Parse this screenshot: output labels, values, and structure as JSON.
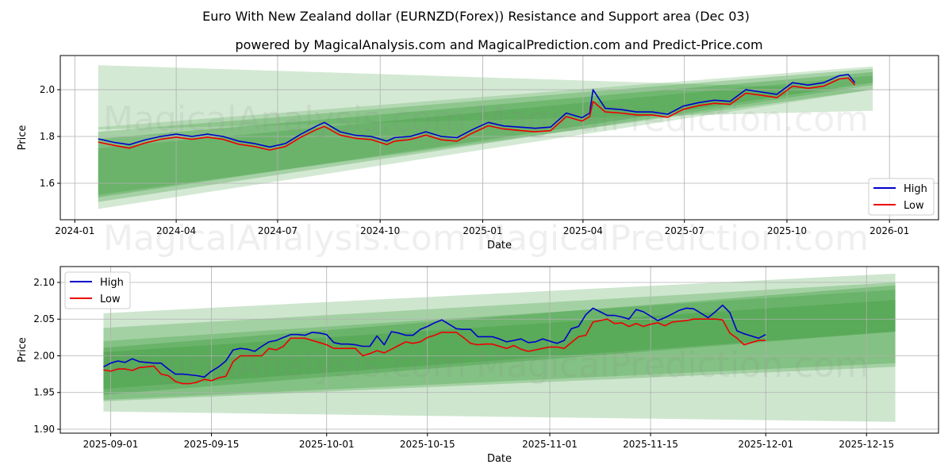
{
  "title": "Euro With New Zealand dollar (EURNZD(Forex)) Resistance and Support area (Dec 03)",
  "subtitle": "powered by MagicalAnalysis.com and MagicalPrediction.com and Predict-Price.com",
  "watermarks": [
    "MagicalAnalysis.com",
    "MagicalPrediction.com"
  ],
  "colors": {
    "high": "#0000cc",
    "low": "#ee0000",
    "band": "#3a9a3a"
  },
  "chart_data": [
    {
      "type": "line",
      "xlabel": "Date",
      "ylabel": "Price",
      "xlim": [
        "2023-12-19",
        "2026-02-14"
      ],
      "ylim": [
        1.444,
        2.146
      ],
      "grid": true,
      "legend": {
        "placement": "bottom-right",
        "entries": [
          "High",
          "Low"
        ]
      },
      "xticks": [
        "2024-01",
        "2024-04",
        "2024-07",
        "2024-10",
        "2025-01",
        "2025-04",
        "2025-07",
        "2025-10",
        "2026-01"
      ],
      "yticks": [
        "1.6",
        "1.8",
        "2.0"
      ],
      "bands": {
        "x": [
          "2024-01-22",
          "2025-12-17"
        ],
        "ranges": [
          {
            "left": [
              1.83,
              2.105
            ],
            "right": [
              1.91,
              2.0
            ],
            "opacity": 0.22
          },
          {
            "left": [
              1.49,
              1.84
            ],
            "right": [
              2.0,
              2.1
            ],
            "opacity": 0.22
          },
          {
            "left": [
              1.52,
              1.82
            ],
            "right": [
              2.02,
              2.09
            ],
            "opacity": 0.3
          },
          {
            "left": [
              1.54,
              1.79
            ],
            "right": [
              2.03,
              2.075
            ],
            "opacity": 0.35
          },
          {
            "left": [
              1.55,
              1.75
            ],
            "right": [
              2.0,
              2.06
            ],
            "opacity": 0.3
          }
        ]
      },
      "x": [
        "2024-01-22",
        "2024-02-05",
        "2024-02-19",
        "2024-03-04",
        "2024-03-18",
        "2024-04-01",
        "2024-04-15",
        "2024-04-29",
        "2024-05-13",
        "2024-05-27",
        "2024-06-10",
        "2024-06-24",
        "2024-07-08",
        "2024-07-22",
        "2024-08-05",
        "2024-08-12",
        "2024-08-26",
        "2024-09-09",
        "2024-09-23",
        "2024-10-07",
        "2024-10-14",
        "2024-10-28",
        "2024-11-11",
        "2024-11-25",
        "2024-12-09",
        "2024-12-23",
        "2025-01-06",
        "2025-01-20",
        "2025-02-03",
        "2025-02-17",
        "2025-03-03",
        "2025-03-17",
        "2025-03-31",
        "2025-04-07",
        "2025-04-10",
        "2025-04-21",
        "2025-05-05",
        "2025-05-19",
        "2025-06-02",
        "2025-06-16",
        "2025-06-30",
        "2025-07-14",
        "2025-07-28",
        "2025-08-11",
        "2025-08-25",
        "2025-09-08",
        "2025-09-22",
        "2025-10-06",
        "2025-10-20",
        "2025-11-03",
        "2025-11-17",
        "2025-11-25",
        "2025-12-01"
      ],
      "series": [
        {
          "name": "High",
          "values": [
            1.79,
            1.775,
            1.765,
            1.785,
            1.8,
            1.81,
            1.8,
            1.81,
            1.8,
            1.78,
            1.77,
            1.755,
            1.77,
            1.81,
            1.845,
            1.86,
            1.82,
            1.805,
            1.8,
            1.78,
            1.795,
            1.8,
            1.82,
            1.8,
            1.795,
            1.83,
            1.86,
            1.845,
            1.84,
            1.835,
            1.84,
            1.9,
            1.88,
            1.9,
            2.0,
            1.92,
            1.915,
            1.905,
            1.905,
            1.895,
            1.93,
            1.945,
            1.955,
            1.95,
            2.0,
            1.99,
            1.98,
            2.03,
            2.02,
            2.03,
            2.06,
            2.065,
            2.03
          ]
        },
        {
          "name": "Low",
          "values": [
            1.776,
            1.762,
            1.75,
            1.772,
            1.788,
            1.797,
            1.788,
            1.797,
            1.788,
            1.767,
            1.757,
            1.742,
            1.757,
            1.797,
            1.83,
            1.843,
            1.806,
            1.792,
            1.787,
            1.765,
            1.78,
            1.787,
            1.806,
            1.786,
            1.78,
            1.815,
            1.846,
            1.832,
            1.826,
            1.82,
            1.825,
            1.885,
            1.866,
            1.885,
            1.95,
            1.905,
            1.9,
            1.892,
            1.892,
            1.882,
            1.916,
            1.932,
            1.942,
            1.937,
            1.985,
            1.976,
            1.966,
            2.015,
            2.006,
            2.015,
            2.046,
            2.05,
            2.02
          ]
        }
      ]
    },
    {
      "type": "line",
      "xlabel": "Date",
      "ylabel": "Price",
      "xlim": [
        "2025-08-25",
        "2025-12-25"
      ],
      "ylim": [
        1.8946,
        2.1216
      ],
      "grid": true,
      "legend": {
        "placement": "top-left",
        "entries": [
          "High",
          "Low"
        ]
      },
      "xticks": [
        "2025-09-01",
        "2025-09-15",
        "2025-10-01",
        "2025-10-15",
        "2025-11-01",
        "2025-11-15",
        "2025-12-01",
        "2025-12-15"
      ],
      "yticks": [
        "1.90",
        "1.95",
        "2.00",
        "2.05",
        "2.10"
      ],
      "bands": {
        "x": [
          "2025-08-31",
          "2025-12-19"
        ],
        "ranges": [
          {
            "left": [
              1.924,
              2.058
            ],
            "right": [
              1.91,
              2.112
            ],
            "opacity": 0.25
          },
          {
            "left": [
              1.938,
              2.038
            ],
            "right": [
              1.985,
              2.1
            ],
            "opacity": 0.28
          },
          {
            "left": [
              1.94,
              2.02
            ],
            "right": [
              1.99,
              2.09
            ],
            "opacity": 0.3
          },
          {
            "left": [
              1.947,
              2.011
            ],
            "right": [
              2.033,
              2.096
            ],
            "opacity": 0.35
          },
          {
            "left": [
              1.955,
              2.005
            ],
            "right": [
              2.033,
              2.076
            ],
            "opacity": 0.35
          }
        ]
      },
      "x_start": "2025-08-31",
      "x_step_days": 1,
      "series": [
        {
          "name": "High",
          "values": [
            1.985,
            1.99,
            1.993,
            1.991,
            1.996,
            1.992,
            1.991,
            1.99,
            1.99,
            1.982,
            1.975,
            1.975,
            1.974,
            1.973,
            1.971,
            1.979,
            1.985,
            1.993,
            2.008,
            2.01,
            2.009,
            2.006,
            2.013,
            2.019,
            2.021,
            2.025,
            2.029,
            2.029,
            2.028,
            2.032,
            2.031,
            2.029,
            2.018,
            2.016,
            2.016,
            2.015,
            2.013,
            2.013,
            2.027,
            2.015,
            2.033,
            2.031,
            2.028,
            2.028,
            2.036,
            2.04,
            2.045,
            2.049,
            2.043,
            2.037,
            2.036,
            2.036,
            2.026,
            2.026,
            2.026,
            2.023,
            2.019,
            2.021,
            2.023,
            2.018,
            2.019,
            2.023,
            2.02,
            2.017,
            2.021,
            2.037,
            2.04,
            2.056,
            2.065,
            2.06,
            2.055,
            2.055,
            2.053,
            2.05,
            2.063,
            2.06,
            2.054,
            2.048,
            2.052,
            2.057,
            2.062,
            2.065,
            2.064,
            2.058,
            2.052,
            2.06,
            2.069,
            2.059,
            2.034,
            2.03,
            2.027,
            2.024,
            2.029
          ]
        },
        {
          "name": "Low",
          "values": [
            1.981,
            1.979,
            1.982,
            1.982,
            1.98,
            1.984,
            1.985,
            1.986,
            1.975,
            1.973,
            1.965,
            1.962,
            1.962,
            1.964,
            1.968,
            1.966,
            1.97,
            1.972,
            1.992,
            2.0,
            2.0,
            2.0,
            2.0,
            2.01,
            2.008,
            2.013,
            2.024,
            2.024,
            2.024,
            2.021,
            2.018,
            2.015,
            2.01,
            2.01,
            2.01,
            2.01,
            2.0,
            2.003,
            2.007,
            2.004,
            2.009,
            2.014,
            2.019,
            2.017,
            2.019,
            2.025,
            2.028,
            2.032,
            2.032,
            2.032,
            2.025,
            2.017,
            2.015,
            2.016,
            2.016,
            2.013,
            2.01,
            2.014,
            2.009,
            2.006,
            2.008,
            2.01,
            2.012,
            2.012,
            2.01,
            2.018,
            2.026,
            2.028,
            2.046,
            2.048,
            2.05,
            2.044,
            2.045,
            2.04,
            2.044,
            2.04,
            2.043,
            2.045,
            2.041,
            2.046,
            2.047,
            2.048,
            2.05,
            2.05,
            2.05,
            2.05,
            2.049,
            2.031,
            2.024,
            2.015,
            2.018,
            2.021,
            2.021
          ]
        }
      ]
    }
  ]
}
